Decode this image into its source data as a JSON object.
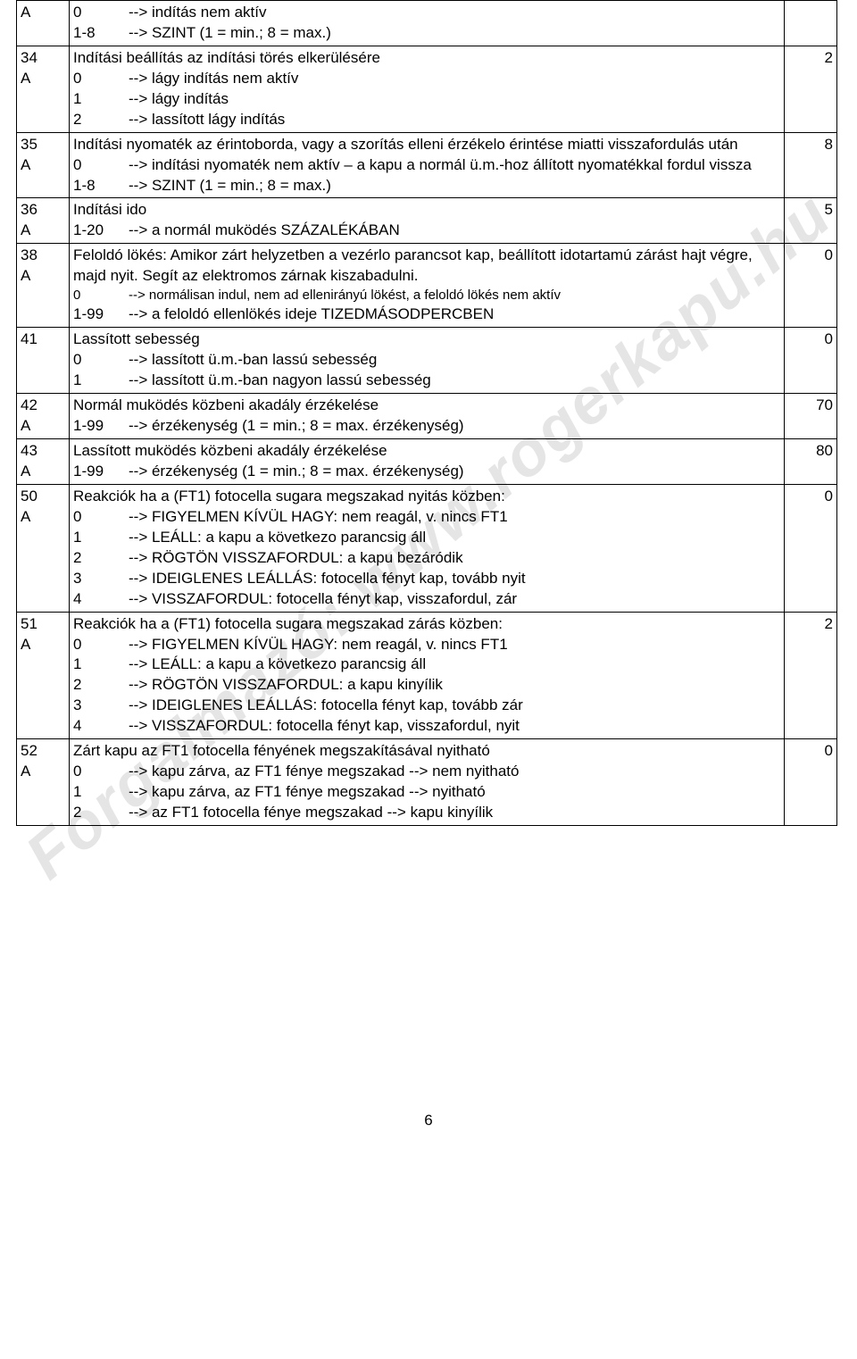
{
  "watermark": "Forgalmazó: www.rogerkapu.hu",
  "page_number": "6",
  "rows": [
    {
      "code": "A",
      "val": "",
      "content_lines": [
        {
          "k": "0",
          "v": "--> indítás nem aktív"
        },
        {
          "k": "1-8",
          "v": "--> SZINT (1 = min.; 8 = max.)"
        }
      ]
    },
    {
      "code": "34\nA",
      "val": "2",
      "title": "Indítási beállítás az indítási törés elkerülésére",
      "content_lines": [
        {
          "k": "0",
          "v": "--> lágy indítás nem aktív"
        },
        {
          "k": "1",
          "v": "--> lágy indítás"
        },
        {
          "k": "2",
          "v": "--> lassított lágy indítás"
        }
      ]
    },
    {
      "code": "35\nA",
      "val": "8",
      "title": "Indítási nyomaték az érintoborda, vagy a szorítás elleni érzékelo érintése miatti visszafordulás után",
      "content_lines": [
        {
          "k": "0",
          "v": "--> indítási nyomaték nem aktív – a kapu a normál ü.m.-hoz állított nyomatékkal fordul vissza"
        },
        {
          "k": "1-8",
          "v": "--> SZINT (1 = min.; 8 = max.)"
        }
      ]
    },
    {
      "code": "36\nA",
      "val": "5",
      "title": "Indítási ido",
      "content_lines": [
        {
          "k": "1-20",
          "v": "--> a normál muködés SZÁZALÉKÁBAN"
        }
      ]
    },
    {
      "code": "38\nA",
      "val": "0",
      "title": "Feloldó lökés: Amikor zárt helyzetben a vezérlo parancsot kap, beállított idotartamú zárást hajt végre, majd nyit. Segít az elektromos zárnak kiszabadulni.",
      "content_lines": [
        {
          "k": "0",
          "v": "--> normálisan indul, nem ad ellenirányú lökést, a feloldó lökés nem aktív",
          "small": true
        },
        {
          "k": "1-99",
          "v": "--> a feloldó ellenlökés ideje TIZEDMÁSODPERCBEN"
        }
      ]
    },
    {
      "code": "41",
      "val": "0",
      "title": "Lassított sebesség",
      "content_lines": [
        {
          "k": "0",
          "v": "--> lassított ü.m.-ban lassú sebesség"
        },
        {
          "k": "1",
          "v": "--> lassított ü.m.-ban nagyon lassú sebesség"
        }
      ]
    },
    {
      "code": "42\nA",
      "val": "70",
      "title": "Normál muködés közbeni akadály érzékelése",
      "content_lines": [
        {
          "k": "1-99",
          "v": "--> érzékenység (1 = min.; 8 = max. érzékenység)"
        }
      ]
    },
    {
      "code": "43\nA",
      "val": "80",
      "title": "Lassított muködés közbeni akadály érzékelése",
      "content_lines": [
        {
          "k": "1-99",
          "v": "--> érzékenység (1 = min.; 8 = max. érzékenység)"
        }
      ]
    },
    {
      "code": "50\nA",
      "val": "0",
      "title": "Reakciók ha a (FT1) fotocella sugara megszakad nyitás közben:",
      "content_lines": [
        {
          "k": "0",
          "v": "--> FIGYELMEN KÍVÜL HAGY: nem reagál, v. nincs FT1"
        },
        {
          "k": "1",
          "v": "--> LEÁLL: a kapu a következo parancsig áll"
        },
        {
          "k": "2",
          "v": "--> RÖGTÖN VISSZAFORDUL: a kapu bezáródik"
        },
        {
          "k": "3",
          "v": "--> IDEIGLENES LEÁLLÁS: fotocella fényt kap, tovább nyit"
        },
        {
          "k": "4",
          "v": "--> VISSZAFORDUL: fotocella fényt kap, visszafordul, zár"
        }
      ]
    },
    {
      "code": "51\nA",
      "val": "2",
      "title": "Reakciók ha a (FT1) fotocella sugara megszakad zárás közben:",
      "content_lines": [
        {
          "k": "0",
          "v": "--> FIGYELMEN KÍVÜL HAGY: nem reagál, v. nincs FT1"
        },
        {
          "k": "1",
          "v": "--> LEÁLL: a kapu a következo parancsig áll"
        },
        {
          "k": "2",
          "v": "--> RÖGTÖN VISSZAFORDUL: a kapu kinyílik"
        },
        {
          "k": "3",
          "v": "--> IDEIGLENES LEÁLLÁS: fotocella fényt kap, tovább zár"
        },
        {
          "k": "4",
          "v": "--> VISSZAFORDUL: fotocella fényt kap, visszafordul, nyit"
        }
      ]
    },
    {
      "code": "52\nA",
      "val": "0",
      "title": "Zárt kapu az FT1 fotocella fényének megszakításával nyitható",
      "content_lines": [
        {
          "k": "0",
          "v": "--> kapu zárva, az FT1 fénye megszakad --> nem nyitható"
        },
        {
          "k": "1",
          "v": "--> kapu zárva, az FT1 fénye megszakad --> nyitható"
        },
        {
          "k": "2",
          "v": "--> az FT1 fotocella fénye megszakad --> kapu kinyílik"
        }
      ]
    }
  ]
}
